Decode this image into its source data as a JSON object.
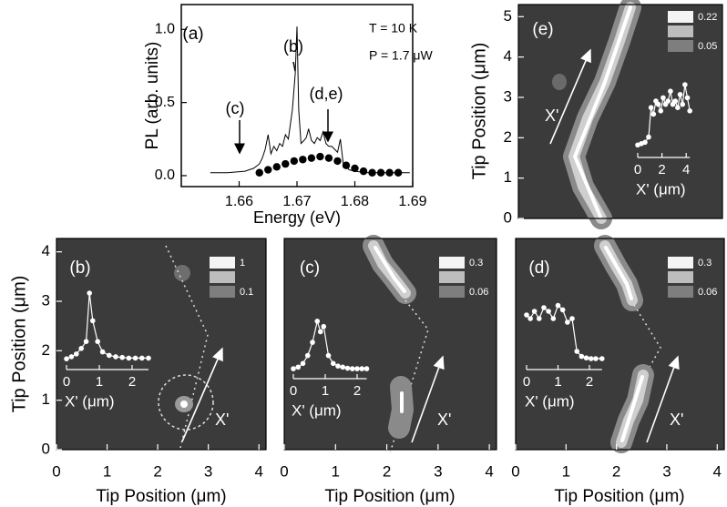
{
  "chart_data": [
    {
      "type": "line",
      "label": "(a)",
      "annotations": [
        "T = 10 K",
        "P = 1.7 μW",
        "(b)",
        "(c)",
        "(d,e)"
      ],
      "xlabel": "Energy (eV)",
      "ylabel": "PL (arb. units)",
      "xlim": [
        1.65,
        1.69
      ],
      "xticks": [
        1.66,
        1.67,
        1.68,
        1.69
      ],
      "ylim": [
        -0.075,
        1.17
      ],
      "yticks": [
        {
          "value": 0,
          "label": "0.0"
        },
        {
          "value": 0.5,
          "label": "0.5"
        },
        {
          "value": 1,
          "label": "1.0"
        }
      ],
      "series": [
        {
          "style": "line",
          "color": "#000000",
          "x": [
            1.655,
            1.658,
            1.661,
            1.6625,
            1.6635,
            1.664,
            1.6645,
            1.665,
            1.6655,
            1.666,
            1.6665,
            1.667,
            1.6675,
            1.668,
            1.6685,
            1.6692,
            1.6697,
            1.67,
            1.6703,
            1.6707,
            1.6712,
            1.6716,
            1.672,
            1.6725,
            1.673,
            1.6735,
            1.674,
            1.6745,
            1.675,
            1.6755,
            1.676,
            1.6765,
            1.677,
            1.6775,
            1.678,
            1.679,
            1.68,
            1.682,
            1.685,
            1.688,
            1.6895
          ],
          "values": [
            0.02,
            0.02,
            0.03,
            0.05,
            0.08,
            0.12,
            0.18,
            0.28,
            0.15,
            0.2,
            0.17,
            0.22,
            0.2,
            0.28,
            0.25,
            0.45,
            0.7,
            1.02,
            0.45,
            0.22,
            0.24,
            0.26,
            0.32,
            0.24,
            0.22,
            0.26,
            0.24,
            0.3,
            0.22,
            0.2,
            0.2,
            0.18,
            0.16,
            0.25,
            0.08,
            0.04,
            0.03,
            0.02,
            0.02,
            0.02,
            0.02
          ]
        },
        {
          "style": "dots",
          "color": "#000000",
          "x": [
            1.6635,
            1.665,
            1.6665,
            1.668,
            1.6695,
            1.671,
            1.6725,
            1.674,
            1.6755,
            1.677,
            1.6785,
            1.68,
            1.6815,
            1.683,
            1.6845,
            1.686,
            1.6875
          ],
          "values": [
            0.02,
            0.04,
            0.06,
            0.08,
            0.1,
            0.11,
            0.12,
            0.13,
            0.12,
            0.1,
            0.07,
            0.05,
            0.03,
            0.02,
            0.02,
            0.02,
            0.02
          ]
        }
      ]
    },
    {
      "type": "map",
      "label": "(b)",
      "xlabel": "Tip Position (μm)",
      "ylabel": "Tip Position (μm)",
      "xlim": [
        0,
        4.14
      ],
      "xticks": [
        0,
        1,
        2,
        3,
        4
      ],
      "ylim": [
        0,
        4.27
      ],
      "yticks": [
        0,
        1,
        2,
        3,
        4
      ],
      "scale": [
        1,
        0.1
      ],
      "pointer": "X'",
      "inset": {
        "xlabel": "X' (μm)",
        "xlim": [
          0,
          2.5
        ],
        "xticks": [
          0,
          1,
          2
        ],
        "x": [
          0,
          0.15,
          0.3,
          0.45,
          0.6,
          0.7,
          0.8,
          0.95,
          1.1,
          1.3,
          1.5,
          1.7,
          1.9,
          2.1,
          2.3,
          2.5
        ],
        "values": [
          0.05,
          0.08,
          0.12,
          0.2,
          0.3,
          1.0,
          0.6,
          0.3,
          0.15,
          0.1,
          0.08,
          0.07,
          0.06,
          0.06,
          0.06,
          0.06
        ]
      }
    },
    {
      "type": "map",
      "label": "(c)",
      "xlabel": "Tip Position (μm)",
      "xlim": [
        0,
        4.14
      ],
      "xticks": [
        0,
        1,
        2,
        3,
        4
      ],
      "ylim": [
        0,
        4.27
      ],
      "scale": [
        0.3,
        0.06
      ],
      "pointer": "X'",
      "inset": {
        "xlabel": "X' (μm)",
        "xlim": [
          0,
          2.3
        ],
        "xticks": [
          0,
          1,
          2
        ],
        "x": [
          0,
          0.15,
          0.3,
          0.45,
          0.6,
          0.75,
          0.85,
          0.95,
          1.1,
          1.25,
          1.4,
          1.55,
          1.7,
          1.85,
          2.0,
          2.15,
          2.3
        ],
        "values": [
          0.05,
          0.08,
          0.15,
          0.3,
          0.55,
          0.95,
          0.75,
          0.85,
          0.3,
          0.15,
          0.1,
          0.08,
          0.06,
          0.05,
          0.05,
          0.05,
          0.05
        ]
      }
    },
    {
      "type": "map",
      "label": "(d)",
      "xlabel": "Tip Position (μm)",
      "xlim": [
        0,
        4.14
      ],
      "xticks": [
        0,
        1,
        2,
        3,
        4
      ],
      "ylim": [
        0,
        4.27
      ],
      "scale": [
        0.3,
        0.06
      ],
      "pointer": "X'",
      "inset": {
        "xlabel": "X' (μm)",
        "xlim": [
          0,
          2.4
        ],
        "xticks": [
          0,
          1,
          2
        ],
        "x": [
          0,
          0.12,
          0.25,
          0.4,
          0.55,
          0.7,
          0.85,
          1.0,
          1.15,
          1.3,
          1.45,
          1.6,
          1.75,
          1.9,
          2.05,
          2.2,
          2.4
        ],
        "values": [
          0.65,
          0.6,
          0.7,
          0.6,
          0.75,
          0.7,
          0.6,
          0.78,
          0.72,
          0.55,
          0.6,
          0.15,
          0.08,
          0.06,
          0.05,
          0.05,
          0.05
        ]
      }
    },
    {
      "type": "map",
      "label": "(e)",
      "ylabel": "Tip Position (μm)",
      "ylim": [
        0,
        5.3
      ],
      "yticks": [
        0,
        1,
        2,
        3,
        4,
        5
      ],
      "scale": [
        0.22,
        0.05
      ],
      "pointer": "X'",
      "inset": {
        "xlabel": "X' (μm)",
        "xlim": [
          0,
          4.3
        ],
        "xticks": [
          0,
          2,
          4
        ],
        "x": [
          0,
          0.3,
          0.6,
          0.9,
          1.1,
          1.3,
          1.5,
          1.7,
          1.9,
          2.1,
          2.3,
          2.5,
          2.7,
          2.9,
          3.1,
          3.3,
          3.5,
          3.7,
          3.9,
          4.1,
          4.3
        ],
        "values": [
          0.08,
          0.1,
          0.12,
          0.2,
          0.65,
          0.55,
          0.75,
          0.7,
          0.6,
          0.8,
          0.7,
          0.75,
          0.9,
          0.7,
          0.75,
          0.65,
          0.85,
          0.7,
          1.0,
          0.8,
          0.6
        ]
      }
    }
  ]
}
